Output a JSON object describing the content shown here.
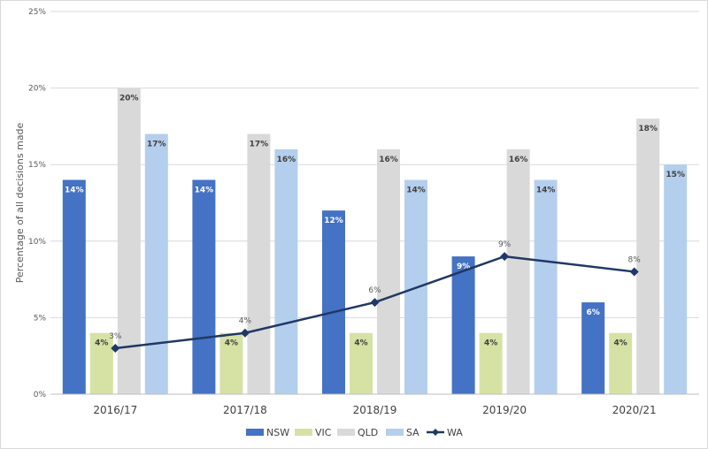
{
  "chart_data": {
    "type": "bar",
    "title": "",
    "ylabel": "Percentage of all decisions made",
    "xlabel": "",
    "ylim": [
      0,
      25
    ],
    "y_ticks": [
      "0%",
      "5%",
      "10%",
      "15%",
      "20%",
      "25%"
    ],
    "categories": [
      "2016/17",
      "2017/18",
      "2018/19",
      "2019/20",
      "2020/21"
    ],
    "series": [
      {
        "name": "NSW",
        "type": "bar",
        "color": "#4472c4",
        "label_color": "#ffffff",
        "values": [
          14,
          14,
          12,
          9,
          6
        ],
        "labels": [
          "14%",
          "14%",
          "12%",
          "9%",
          "6%"
        ]
      },
      {
        "name": "VIC",
        "type": "bar",
        "color": "#d5e2a4",
        "label_color": "#404040",
        "values": [
          4,
          4,
          4,
          4,
          4
        ],
        "labels": [
          "4%",
          "4%",
          "4%",
          "4%",
          "4%"
        ]
      },
      {
        "name": "QLD",
        "type": "bar",
        "color": "#d9d9d9",
        "label_color": "#404040",
        "values": [
          20,
          17,
          16,
          16,
          18
        ],
        "labels": [
          "20%",
          "17%",
          "16%",
          "16%",
          "18%"
        ]
      },
      {
        "name": "SA",
        "type": "bar",
        "color": "#b4cfed",
        "label_color": "#404040",
        "values": [
          17,
          16,
          14,
          14,
          15
        ],
        "labels": [
          "17%",
          "16%",
          "14%",
          "14%",
          "15%"
        ]
      },
      {
        "name": "WA",
        "type": "line",
        "color": "#203864",
        "label_color": "#595959",
        "values": [
          3,
          4,
          6,
          9,
          8
        ],
        "labels": [
          "3%",
          "4%",
          "6%",
          "9%",
          "8%"
        ]
      }
    ],
    "grid": true,
    "legend_position": "bottom"
  }
}
